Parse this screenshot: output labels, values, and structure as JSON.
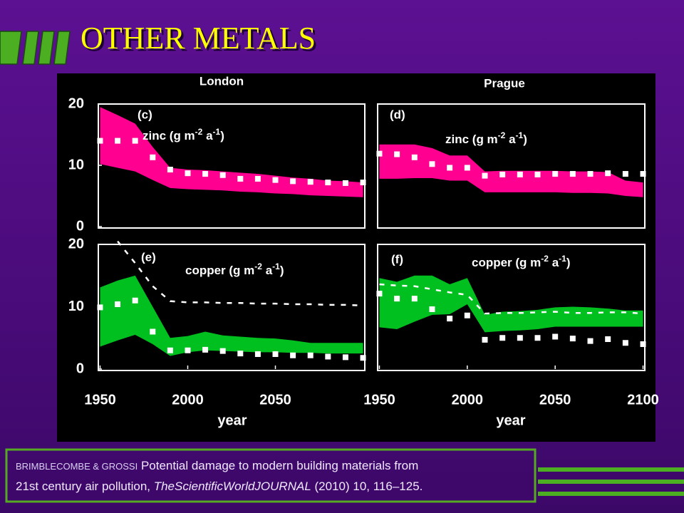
{
  "header": {
    "title": "OTHER METALS"
  },
  "footer": {
    "authors": "BRIMBLECOMBE & GROSSI",
    "line1": "Potential damage to modern building materials from",
    "line2a": "21st century air pollution, ",
    "journal": "TheScientificWorldJOURNAL",
    "line2b": " (2010) 10, 116–125."
  },
  "chart_data": [
    {
      "type": "area",
      "title": "London",
      "label": "(c)",
      "annotation": [
        "zinc (g m",
        "-2",
        " a",
        "-1",
        ")"
      ],
      "x": [
        1950,
        1960,
        1970,
        1980,
        1990,
        2000,
        2010,
        2020,
        2030,
        2040,
        2050,
        2060,
        2070,
        2080,
        2090,
        2100
      ],
      "xlim": [
        1949,
        2101
      ],
      "ylim": [
        0,
        20
      ],
      "yticks": [
        0,
        10,
        20
      ],
      "band": {
        "color": "#ff0090",
        "upper": [
          19.5,
          18.2,
          16.8,
          13,
          9.6,
          9.3,
          9.2,
          9,
          8.8,
          8.6,
          8.3,
          8,
          7.8,
          7.5,
          7.4,
          7.2
        ],
        "lower": [
          10.2,
          9.6,
          9,
          7.6,
          6.3,
          6.1,
          6,
          5.9,
          5.7,
          5.6,
          5.4,
          5.3,
          5.1,
          5,
          4.9,
          4.8
        ]
      },
      "series": [
        {
          "color": "#ffffff",
          "marker": "square",
          "values": [
            14,
            14,
            14,
            11.3,
            9.3,
            8.7,
            8.6,
            8.4,
            7.8,
            7.8,
            7.6,
            7.4,
            7.3,
            7.2,
            7.1,
            7.2
          ]
        }
      ]
    },
    {
      "type": "area",
      "title": "Prague",
      "label": "(d)",
      "annotation": [
        "zinc (g m",
        "-2",
        " a",
        "-1",
        ")"
      ],
      "x": [
        1950,
        1960,
        1970,
        1980,
        1990,
        2000,
        2010,
        2020,
        2030,
        2040,
        2050,
        2060,
        2070,
        2080,
        2090,
        2100
      ],
      "xlim": [
        1949,
        2101
      ],
      "ylim": [
        0,
        20
      ],
      "band": {
        "color": "#ff0090",
        "upper": [
          13.4,
          13.4,
          13.4,
          12.8,
          11.6,
          11.6,
          9,
          9.1,
          9.1,
          9.1,
          9.1,
          9,
          9,
          8.9,
          7.5,
          7.2
        ],
        "lower": [
          7.8,
          7.8,
          7.9,
          7.9,
          7.5,
          7.5,
          5.6,
          5.6,
          5.6,
          5.6,
          5.6,
          5.5,
          5.5,
          5.4,
          5,
          4.8
        ]
      },
      "series": [
        {
          "color": "#ffffff",
          "marker": "square",
          "values": [
            11.9,
            11.8,
            11.3,
            10.2,
            9.6,
            9.6,
            8.3,
            8.5,
            8.5,
            8.5,
            8.6,
            8.6,
            8.6,
            8.7,
            8.6,
            8.6
          ]
        }
      ]
    },
    {
      "type": "area",
      "label": "(e)",
      "annotation": [
        "copper (g m",
        "-2",
        " a",
        "-1",
        ")"
      ],
      "xlabel": "year",
      "x": [
        1950,
        1960,
        1970,
        1980,
        1990,
        2000,
        2010,
        2020,
        2030,
        2040,
        2050,
        2060,
        2070,
        2080,
        2090,
        2100
      ],
      "xlim": [
        1949,
        2101
      ],
      "xticks": [
        1950,
        2000,
        2050
      ],
      "ylim": [
        0,
        20
      ],
      "yticks": [
        0,
        10,
        20
      ],
      "band": {
        "color": "#00c020",
        "upper": [
          13.1,
          14.2,
          15,
          10,
          5,
          5.3,
          6,
          5.4,
          5.2,
          5,
          4.9,
          4.6,
          4.2,
          4.2,
          4.2,
          4.2
        ],
        "lower": [
          3.6,
          4.6,
          5.5,
          4,
          2.1,
          2.7,
          3,
          2.9,
          2.8,
          2.7,
          2.7,
          2.6,
          2.6,
          2.5,
          2.5,
          2.5
        ]
      },
      "series": [
        {
          "color": "#ffffff",
          "marker": "square",
          "values": [
            9.9,
            10.4,
            11,
            6,
            3,
            3,
            3.1,
            2.9,
            2.5,
            2.4,
            2.4,
            2.2,
            2.2,
            2,
            1.9,
            1.8
          ]
        },
        {
          "color": "#ffffff",
          "dash": true,
          "values": [
            null,
            20.5,
            17,
            13.3,
            10.9,
            10.7,
            10.7,
            10.6,
            10.6,
            10.5,
            10.5,
            10.4,
            10.4,
            10.3,
            10.3,
            10.2
          ]
        }
      ]
    },
    {
      "type": "area",
      "label": "(f)",
      "annotation": [
        "copper (g m",
        "-2",
        " a",
        "-1",
        ")"
      ],
      "xlabel": "year",
      "x": [
        1950,
        1960,
        1970,
        1980,
        1990,
        2000,
        2010,
        2020,
        2030,
        2040,
        2050,
        2060,
        2070,
        2080,
        2090,
        2100
      ],
      "xlim": [
        1949,
        2101
      ],
      "xticks": [
        1950,
        2000,
        2050,
        2100
      ],
      "ylim": [
        0,
        20
      ],
      "band": {
        "color": "#00c020",
        "upper": [
          14.6,
          14,
          15,
          15,
          13.6,
          14.6,
          8.7,
          9.2,
          9.3,
          9.5,
          9.9,
          10,
          9.9,
          9.7,
          9.4,
          9.4
        ],
        "lower": [
          6.7,
          6.4,
          7.6,
          8.7,
          8.8,
          10.4,
          5.9,
          6.1,
          6.2,
          6.4,
          6.8,
          6.8,
          6.8,
          6.8,
          6.8,
          6.8
        ]
      },
      "series": [
        {
          "color": "#ffffff",
          "marker": "square",
          "values": [
            12.1,
            11.3,
            11.3,
            9.6,
            8.1,
            8.6,
            4.7,
            5,
            5,
            5,
            5.2,
            4.9,
            4.5,
            4.8,
            4.2,
            4
          ]
        },
        {
          "color": "#ffffff",
          "dash": true,
          "values": [
            13.6,
            13.4,
            13.3,
            12.8,
            12.3,
            11.9,
            8.9,
            9,
            9,
            9.1,
            9.2,
            9,
            9,
            9.1,
            9.1,
            8.9
          ]
        }
      ]
    }
  ]
}
